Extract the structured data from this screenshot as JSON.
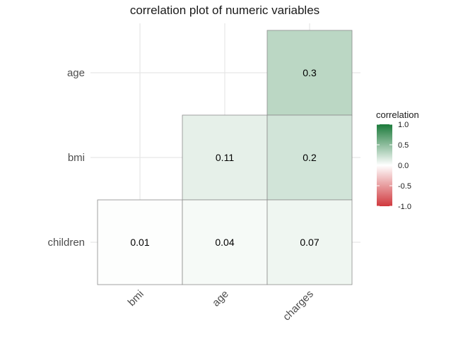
{
  "chart_data": {
    "type": "heatmap",
    "title": "correlation plot of numeric variables",
    "xlabel": "",
    "ylabel": "",
    "x_categories": [
      "bmi",
      "age",
      "charges"
    ],
    "y_categories": [
      "age",
      "bmi",
      "children"
    ],
    "cells": [
      {
        "x": "charges",
        "y": "age",
        "value": 0.3,
        "label": "0.3"
      },
      {
        "x": "age",
        "y": "bmi",
        "value": 0.11,
        "label": "0.11"
      },
      {
        "x": "charges",
        "y": "bmi",
        "value": 0.2,
        "label": "0.2"
      },
      {
        "x": "bmi",
        "y": "children",
        "value": 0.01,
        "label": "0.01"
      },
      {
        "x": "age",
        "y": "children",
        "value": 0.04,
        "label": "0.04"
      },
      {
        "x": "charges",
        "y": "children",
        "value": 0.07,
        "label": "0.07"
      }
    ],
    "legend": {
      "title": "correlation",
      "ticks": [
        "1.0",
        "0.5",
        "0.0",
        "-0.5",
        "-1.0"
      ],
      "range": [
        -1,
        1
      ],
      "position": "right"
    },
    "colors": {
      "high": "#1b7a3a",
      "mid": "#ffffff",
      "low": "#d0383d",
      "grid": "#e6e6e6",
      "cell_border": "#8c8c8c"
    },
    "grid": true
  }
}
